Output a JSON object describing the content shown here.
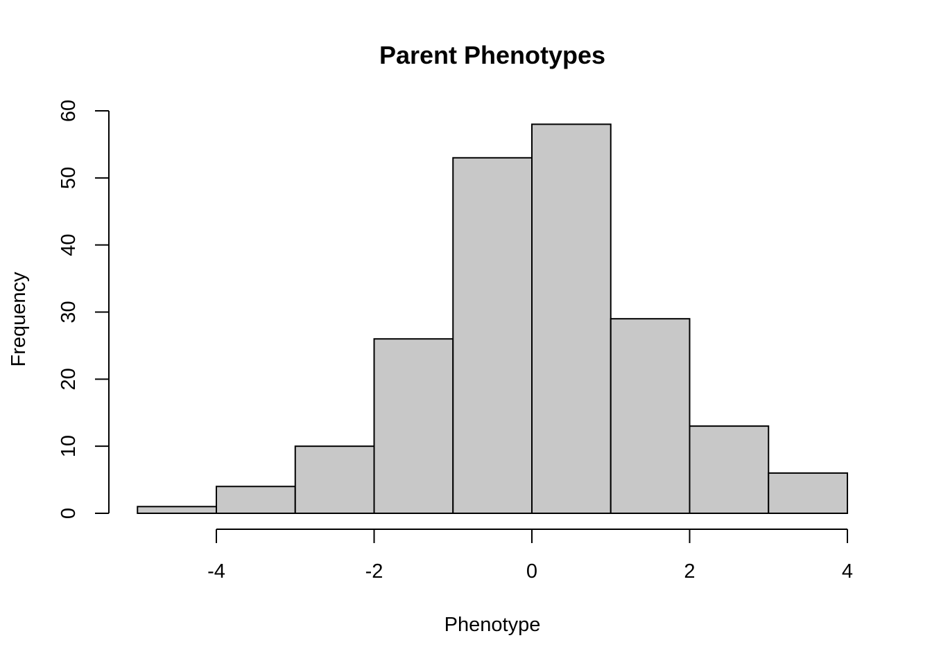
{
  "chart_data": {
    "type": "bar",
    "subtype": "histogram",
    "title": "Parent Phenotypes",
    "xlabel": "Phenotype",
    "ylabel": "Frequency",
    "bins": [
      {
        "from": -5,
        "to": -4,
        "value": 1
      },
      {
        "from": -4,
        "to": -3,
        "value": 4
      },
      {
        "from": -3,
        "to": -2,
        "value": 10
      },
      {
        "from": -2,
        "to": -1,
        "value": 26
      },
      {
        "from": -1,
        "to": 0,
        "value": 53
      },
      {
        "from": 0,
        "to": 1,
        "value": 58
      },
      {
        "from": 1,
        "to": 2,
        "value": 29
      },
      {
        "from": 2,
        "to": 3,
        "value": 13
      },
      {
        "from": 3,
        "to": 4,
        "value": 6
      }
    ],
    "xlim": [
      -5,
      4
    ],
    "ylim": [
      0,
      60
    ],
    "x_ticks": [
      -4,
      -2,
      0,
      2,
      4
    ],
    "y_ticks": [
      0,
      10,
      20,
      30,
      40,
      50,
      60
    ],
    "bar_color": "#c8c8c8",
    "edge_color": "#000000",
    "grid": false,
    "legend": "none"
  }
}
